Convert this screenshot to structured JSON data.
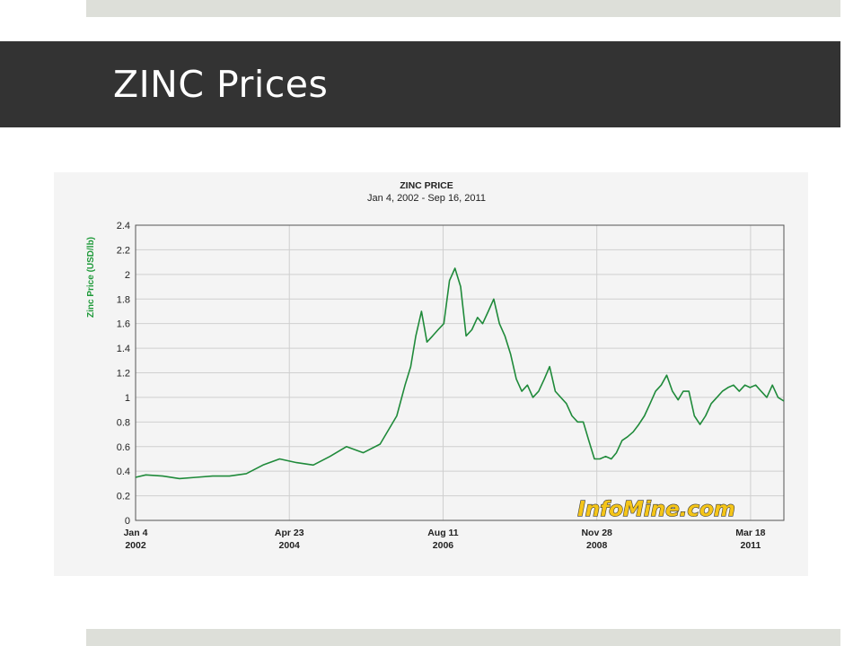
{
  "slide": {
    "title": "ZINC Prices"
  },
  "colors": {
    "title_bar": "#333333",
    "bands": "#dddfd9",
    "series": "#1f8a3a",
    "axis_label": "#1f9a3a",
    "watermark": "#f5c518"
  },
  "watermark": "InfoMine.com",
  "chart_data": {
    "type": "line",
    "title": "ZINC PRICE",
    "subtitle": "Jan 4, 2002 - Sep 16, 2011",
    "ylabel": "Zinc Price (USD/lb)",
    "xlabel": "",
    "ylim": [
      0,
      2.4
    ],
    "xlim": [
      "2002-01-04",
      "2011-09-16"
    ],
    "yticks": [
      "0",
      "0.2",
      "0.4",
      "0.6",
      "0.8",
      "1",
      "1.2",
      "1.4",
      "1.6",
      "1.8",
      "2",
      "2.2",
      "2.4"
    ],
    "xticks": [
      {
        "label": "Jan 4",
        "year": "2002",
        "date": "2002-01-04"
      },
      {
        "label": "Apr 23",
        "year": "2004",
        "date": "2004-04-23"
      },
      {
        "label": "Aug 11",
        "year": "2006",
        "date": "2006-08-11"
      },
      {
        "label": "Nov 28",
        "year": "2008",
        "date": "2008-11-28"
      },
      {
        "label": "Mar 18",
        "year": "2011",
        "date": "2011-03-18"
      }
    ],
    "grid": true,
    "legend": "none",
    "series": [
      {
        "x": [
          "2002-01-04",
          "2002-03-01",
          "2002-06-01",
          "2002-09-01",
          "2002-12-01",
          "2003-03-01",
          "2003-06-01",
          "2003-09-01",
          "2003-12-01",
          "2004-03-01",
          "2004-06-01",
          "2004-09-01",
          "2004-12-01",
          "2005-03-01",
          "2005-06-01",
          "2005-09-01",
          "2005-12-01",
          "2006-01-15",
          "2006-02-15",
          "2006-03-15",
          "2006-04-15",
          "2006-05-15",
          "2006-06-15",
          "2006-07-15",
          "2006-08-15",
          "2006-09-15",
          "2006-10-15",
          "2006-11-15",
          "2006-12-15",
          "2007-01-15",
          "2007-02-15",
          "2007-03-15",
          "2007-04-15",
          "2007-05-15",
          "2007-06-15",
          "2007-07-15",
          "2007-08-15",
          "2007-09-15",
          "2007-10-15",
          "2007-11-15",
          "2007-12-15",
          "2008-01-15",
          "2008-02-15",
          "2008-03-15",
          "2008-04-15",
          "2008-05-15",
          "2008-06-15",
          "2008-07-15",
          "2008-08-15",
          "2008-09-15",
          "2008-10-15",
          "2008-11-15",
          "2008-12-15",
          "2009-01-15",
          "2009-02-15",
          "2009-03-15",
          "2009-04-15",
          "2009-05-15",
          "2009-06-15",
          "2009-07-15",
          "2009-08-15",
          "2009-09-15",
          "2009-10-15",
          "2009-11-15",
          "2009-12-15",
          "2010-01-15",
          "2010-02-15",
          "2010-03-15",
          "2010-04-15",
          "2010-05-15",
          "2010-06-15",
          "2010-07-15",
          "2010-08-15",
          "2010-09-15",
          "2010-10-15",
          "2010-11-15",
          "2010-12-15",
          "2011-01-15",
          "2011-02-15",
          "2011-03-15",
          "2011-04-15",
          "2011-05-15",
          "2011-06-15",
          "2011-07-15",
          "2011-08-15",
          "2011-09-16"
        ],
        "values": [
          0.35,
          0.37,
          0.36,
          0.34,
          0.35,
          0.36,
          0.36,
          0.38,
          0.45,
          0.5,
          0.47,
          0.45,
          0.52,
          0.6,
          0.55,
          0.62,
          0.85,
          1.1,
          1.25,
          1.5,
          1.7,
          1.45,
          1.5,
          1.55,
          1.6,
          1.95,
          2.05,
          1.9,
          1.5,
          1.55,
          1.65,
          1.6,
          1.7,
          1.8,
          1.6,
          1.5,
          1.35,
          1.15,
          1.05,
          1.1,
          1.0,
          1.05,
          1.15,
          1.25,
          1.05,
          1.0,
          0.95,
          0.85,
          0.8,
          0.8,
          0.65,
          0.5,
          0.5,
          0.52,
          0.5,
          0.55,
          0.65,
          0.68,
          0.72,
          0.78,
          0.85,
          0.95,
          1.05,
          1.1,
          1.18,
          1.05,
          0.98,
          1.05,
          1.05,
          0.85,
          0.78,
          0.85,
          0.95,
          1.0,
          1.05,
          1.08,
          1.1,
          1.05,
          1.1,
          1.08,
          1.1,
          1.05,
          1.0,
          1.1,
          1.0,
          0.97
        ]
      }
    ]
  }
}
